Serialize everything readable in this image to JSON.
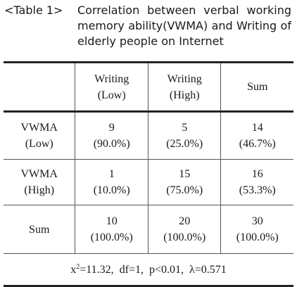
{
  "caption": {
    "number": "<Table 1>",
    "title_words": [
      "Correlation",
      "between",
      "verbal",
      "working"
    ],
    "title_line2_words": [
      "memory",
      "ability(VWMA)",
      "and",
      "Writing",
      "of"
    ],
    "title_line3": "elderly people on Internet"
  },
  "table": {
    "header": {
      "col2_line1": "Writing",
      "col2_line2": "(Low)",
      "col3_line1": "Writing",
      "col3_line2": "(High)",
      "col4": "Sum"
    },
    "rows": [
      {
        "label_line1": "VWMA",
        "label_line2": "(Low)",
        "cells": [
          {
            "count": "9",
            "pct": "(90.0%)"
          },
          {
            "count": "5",
            "pct": "(25.0%)"
          },
          {
            "count": "14",
            "pct": "(46.7%)"
          }
        ]
      },
      {
        "label_line1": "VWMA",
        "label_line2": "(High)",
        "cells": [
          {
            "count": "1",
            "pct": "(10.0%)"
          },
          {
            "count": "15",
            "pct": "(75.0%)"
          },
          {
            "count": "16",
            "pct": "(53.3%)"
          }
        ]
      },
      {
        "label_line1": "Sum",
        "label_line2": "",
        "cells": [
          {
            "count": "10",
            "pct": "(100.0%)"
          },
          {
            "count": "20",
            "pct": "(100.0%)"
          },
          {
            "count": "30",
            "pct": "(100.0%)"
          }
        ]
      }
    ],
    "stats": {
      "chi_base": "x",
      "chi_sup": "2",
      "rest": "=11.32,  df=1,  p<0.01,  λ=0.571"
    }
  }
}
